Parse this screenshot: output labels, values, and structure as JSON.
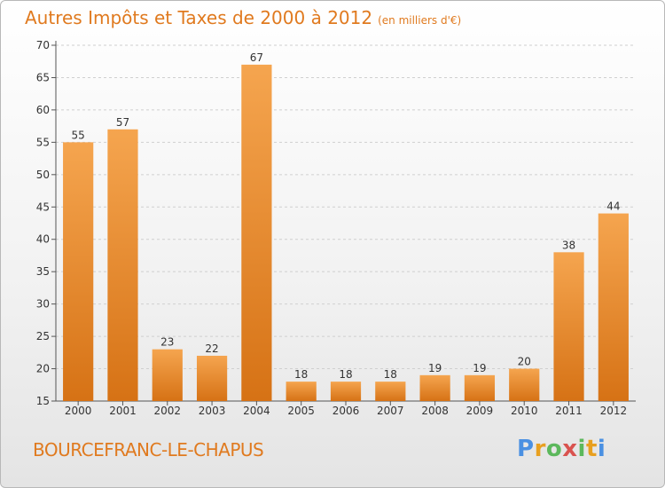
{
  "title": "Autres Impôts et Taxes de 2000 à 2012",
  "subtitle": "(en milliers d'€)",
  "commune": "BOURCEFRANC-LE-CHAPUS",
  "logo": [
    "P",
    "r",
    "o",
    "x",
    "i",
    "t",
    "i"
  ],
  "colors": {
    "bar_light": "#f5a54f",
    "bar_dark": "#d67215",
    "accent": "#e07a1f",
    "grid": "#cfcfcf"
  },
  "chart_data": {
    "type": "bar",
    "title": "Autres Impôts et Taxes de 2000 à 2012",
    "subtitle": "(en milliers d'€)",
    "categories": [
      "2000",
      "2001",
      "2002",
      "2003",
      "2004",
      "2005",
      "2006",
      "2007",
      "2008",
      "2009",
      "2010",
      "2011",
      "2012"
    ],
    "values": [
      55,
      57,
      23,
      22,
      67,
      18,
      18,
      18,
      19,
      19,
      20,
      38,
      44
    ],
    "ylim": [
      15,
      70
    ],
    "yticks": [
      15,
      20,
      25,
      30,
      35,
      40,
      45,
      50,
      55,
      60,
      65,
      70
    ],
    "grid": true,
    "xlabel": "",
    "ylabel": ""
  }
}
